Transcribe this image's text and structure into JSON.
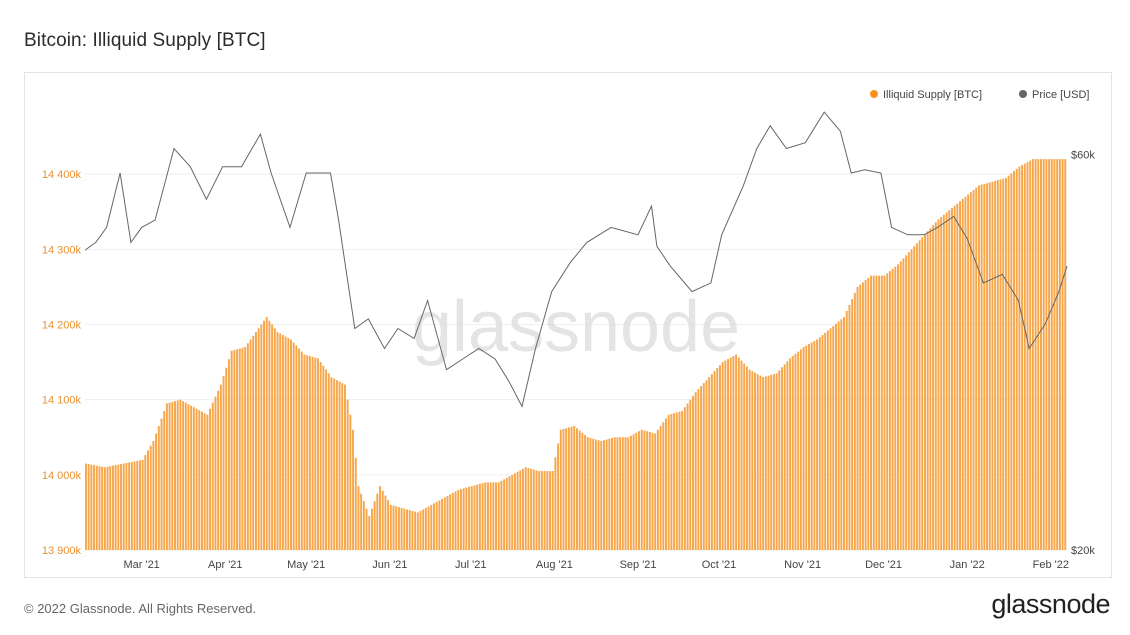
{
  "header": {
    "title": "Bitcoin: Illiquid Supply [BTC]"
  },
  "footer": {
    "copyright": "© 2022 Glassnode. All Rights Reserved.",
    "brand": "glassnode"
  },
  "watermark": "glassnode",
  "colors": {
    "supply": "#f7931a",
    "supply_bar": "#f6a64b",
    "price": "#666666",
    "left_axis": "#e8922f"
  },
  "chart_data": {
    "type": "bar",
    "title": "Bitcoin: Illiquid Supply [BTC]",
    "legend": {
      "placement": "top-right",
      "entries": [
        {
          "label": "Illiquid Supply [BTC]",
          "color": "#f7931a"
        },
        {
          "label": "Price [USD]",
          "color": "#666666"
        }
      ]
    },
    "x_range": [
      "2021-02-08",
      "2022-02-07"
    ],
    "x_ticks": [
      {
        "label": "Mar '21",
        "date": "2021-03-01"
      },
      {
        "label": "Apr '21",
        "date": "2021-04-01"
      },
      {
        "label": "May '21",
        "date": "2021-05-01"
      },
      {
        "label": "Jun '21",
        "date": "2021-06-01"
      },
      {
        "label": "Jul '21",
        "date": "2021-07-01"
      },
      {
        "label": "Aug '21",
        "date": "2021-08-01"
      },
      {
        "label": "Sep '21",
        "date": "2021-09-01"
      },
      {
        "label": "Oct '21",
        "date": "2021-10-01"
      },
      {
        "label": "Nov '21",
        "date": "2021-11-01"
      },
      {
        "label": "Dec '21",
        "date": "2021-12-01"
      },
      {
        "label": "Jan '22",
        "date": "2022-01-01"
      },
      {
        "label": "Feb '22",
        "date": "2022-02-01"
      }
    ],
    "y_left": {
      "ylim": [
        13900000,
        14500000
      ],
      "ticks": [
        {
          "label": "13 900k",
          "value": 13900000
        },
        {
          "label": "14 000k",
          "value": 14000000
        },
        {
          "label": "14 100k",
          "value": 14100000
        },
        {
          "label": "14 200k",
          "value": 14200000
        },
        {
          "label": "14 300k",
          "value": 14300000
        },
        {
          "label": "14 400k",
          "value": 14400000
        }
      ]
    },
    "y_right": {
      "scale": "log",
      "ylim": [
        20000,
        70000
      ],
      "ticks": [
        {
          "label": "$20k",
          "value": 20000
        },
        {
          "label": "$60k",
          "value": 60000
        }
      ]
    },
    "grid": true,
    "series": [
      {
        "name": "Illiquid Supply [BTC]",
        "type": "bar",
        "axis": "left",
        "points": [
          [
            "2021-02-08",
            14015000
          ],
          [
            "2021-02-15",
            14010000
          ],
          [
            "2021-02-22",
            14015000
          ],
          [
            "2021-03-01",
            14020000
          ],
          [
            "2021-03-05",
            14045000
          ],
          [
            "2021-03-10",
            14095000
          ],
          [
            "2021-03-15",
            14100000
          ],
          [
            "2021-03-20",
            14090000
          ],
          [
            "2021-03-25",
            14080000
          ],
          [
            "2021-03-30",
            14120000
          ],
          [
            "2021-04-03",
            14165000
          ],
          [
            "2021-04-08",
            14170000
          ],
          [
            "2021-04-13",
            14195000
          ],
          [
            "2021-04-16",
            14210000
          ],
          [
            "2021-04-20",
            14190000
          ],
          [
            "2021-04-25",
            14180000
          ],
          [
            "2021-04-30",
            14160000
          ],
          [
            "2021-05-05",
            14155000
          ],
          [
            "2021-05-10",
            14130000
          ],
          [
            "2021-05-15",
            14120000
          ],
          [
            "2021-05-18",
            14060000
          ],
          [
            "2021-05-20",
            13985000
          ],
          [
            "2021-05-24",
            13945000
          ],
          [
            "2021-05-28",
            13985000
          ],
          [
            "2021-06-01",
            13960000
          ],
          [
            "2021-06-06",
            13955000
          ],
          [
            "2021-06-11",
            13950000
          ],
          [
            "2021-06-16",
            13960000
          ],
          [
            "2021-06-21",
            13970000
          ],
          [
            "2021-06-26",
            13980000
          ],
          [
            "2021-07-01",
            13985000
          ],
          [
            "2021-07-06",
            13990000
          ],
          [
            "2021-07-11",
            13990000
          ],
          [
            "2021-07-16",
            14000000
          ],
          [
            "2021-07-21",
            14010000
          ],
          [
            "2021-07-26",
            14005000
          ],
          [
            "2021-07-31",
            14005000
          ],
          [
            "2021-08-03",
            14060000
          ],
          [
            "2021-08-08",
            14065000
          ],
          [
            "2021-08-13",
            14050000
          ],
          [
            "2021-08-18",
            14045000
          ],
          [
            "2021-08-23",
            14050000
          ],
          [
            "2021-08-28",
            14050000
          ],
          [
            "2021-09-02",
            14060000
          ],
          [
            "2021-09-07",
            14055000
          ],
          [
            "2021-09-12",
            14080000
          ],
          [
            "2021-09-17",
            14085000
          ],
          [
            "2021-09-22",
            14110000
          ],
          [
            "2021-09-27",
            14130000
          ],
          [
            "2021-10-02",
            14150000
          ],
          [
            "2021-10-07",
            14160000
          ],
          [
            "2021-10-12",
            14140000
          ],
          [
            "2021-10-17",
            14130000
          ],
          [
            "2021-10-22",
            14135000
          ],
          [
            "2021-10-27",
            14155000
          ],
          [
            "2021-11-01",
            14170000
          ],
          [
            "2021-11-06",
            14180000
          ],
          [
            "2021-11-11",
            14195000
          ],
          [
            "2021-11-16",
            14210000
          ],
          [
            "2021-11-21",
            14250000
          ],
          [
            "2021-11-26",
            14265000
          ],
          [
            "2021-12-01",
            14265000
          ],
          [
            "2021-12-06",
            14280000
          ],
          [
            "2021-12-11",
            14300000
          ],
          [
            "2021-12-16",
            14320000
          ],
          [
            "2021-12-21",
            14340000
          ],
          [
            "2021-12-26",
            14355000
          ],
          [
            "2021-12-31",
            14370000
          ],
          [
            "2022-01-05",
            14385000
          ],
          [
            "2022-01-10",
            14390000
          ],
          [
            "2022-01-15",
            14395000
          ],
          [
            "2022-01-20",
            14410000
          ],
          [
            "2022-01-25",
            14420000
          ],
          [
            "2022-01-30",
            14420000
          ],
          [
            "2022-02-04",
            14420000
          ]
        ]
      },
      {
        "name": "Price [USD]",
        "type": "line",
        "axis": "right",
        "points": [
          [
            "2021-02-08",
            46000
          ],
          [
            "2021-02-12",
            47000
          ],
          [
            "2021-02-16",
            49000
          ],
          [
            "2021-02-21",
            57000
          ],
          [
            "2021-02-25",
            47000
          ],
          [
            "2021-03-01",
            49000
          ],
          [
            "2021-03-06",
            50000
          ],
          [
            "2021-03-13",
            61000
          ],
          [
            "2021-03-19",
            58000
          ],
          [
            "2021-03-25",
            53000
          ],
          [
            "2021-03-31",
            58000
          ],
          [
            "2021-04-07",
            58000
          ],
          [
            "2021-04-14",
            63500
          ],
          [
            "2021-04-18",
            57000
          ],
          [
            "2021-04-25",
            49000
          ],
          [
            "2021-05-01",
            57000
          ],
          [
            "2021-05-06",
            57000
          ],
          [
            "2021-05-10",
            57000
          ],
          [
            "2021-05-13",
            50000
          ],
          [
            "2021-05-19",
            37000
          ],
          [
            "2021-05-24",
            38000
          ],
          [
            "2021-05-30",
            35000
          ],
          [
            "2021-06-04",
            37000
          ],
          [
            "2021-06-10",
            36000
          ],
          [
            "2021-06-15",
            40000
          ],
          [
            "2021-06-22",
            33000
          ],
          [
            "2021-06-28",
            34000
          ],
          [
            "2021-07-04",
            35000
          ],
          [
            "2021-07-10",
            34000
          ],
          [
            "2021-07-15",
            32000
          ],
          [
            "2021-07-20",
            29800
          ],
          [
            "2021-07-25",
            35000
          ],
          [
            "2021-07-31",
            41000
          ],
          [
            "2021-08-07",
            44500
          ],
          [
            "2021-08-13",
            47000
          ],
          [
            "2021-08-22",
            49000
          ],
          [
            "2021-09-01",
            48000
          ],
          [
            "2021-09-06",
            52000
          ],
          [
            "2021-09-08",
            46500
          ],
          [
            "2021-09-13",
            44000
          ],
          [
            "2021-09-21",
            41000
          ],
          [
            "2021-09-28",
            42000
          ],
          [
            "2021-10-02",
            48000
          ],
          [
            "2021-10-10",
            55000
          ],
          [
            "2021-10-15",
            61000
          ],
          [
            "2021-10-20",
            65000
          ],
          [
            "2021-10-26",
            61000
          ],
          [
            "2021-11-02",
            62000
          ],
          [
            "2021-11-09",
            67500
          ],
          [
            "2021-11-15",
            64000
          ],
          [
            "2021-11-19",
            57000
          ],
          [
            "2021-11-24",
            57500
          ],
          [
            "2021-11-30",
            57000
          ],
          [
            "2021-12-04",
            49000
          ],
          [
            "2021-12-10",
            48000
          ],
          [
            "2021-12-16",
            48000
          ],
          [
            "2021-12-21",
            49000
          ],
          [
            "2021-12-27",
            50500
          ],
          [
            "2022-01-01",
            47500
          ],
          [
            "2022-01-07",
            42000
          ],
          [
            "2022-01-14",
            43000
          ],
          [
            "2022-01-20",
            40000
          ],
          [
            "2022-01-24",
            35000
          ],
          [
            "2022-01-30",
            37500
          ],
          [
            "2022-02-04",
            41000
          ],
          [
            "2022-02-07",
            44000
          ]
        ]
      }
    ]
  }
}
